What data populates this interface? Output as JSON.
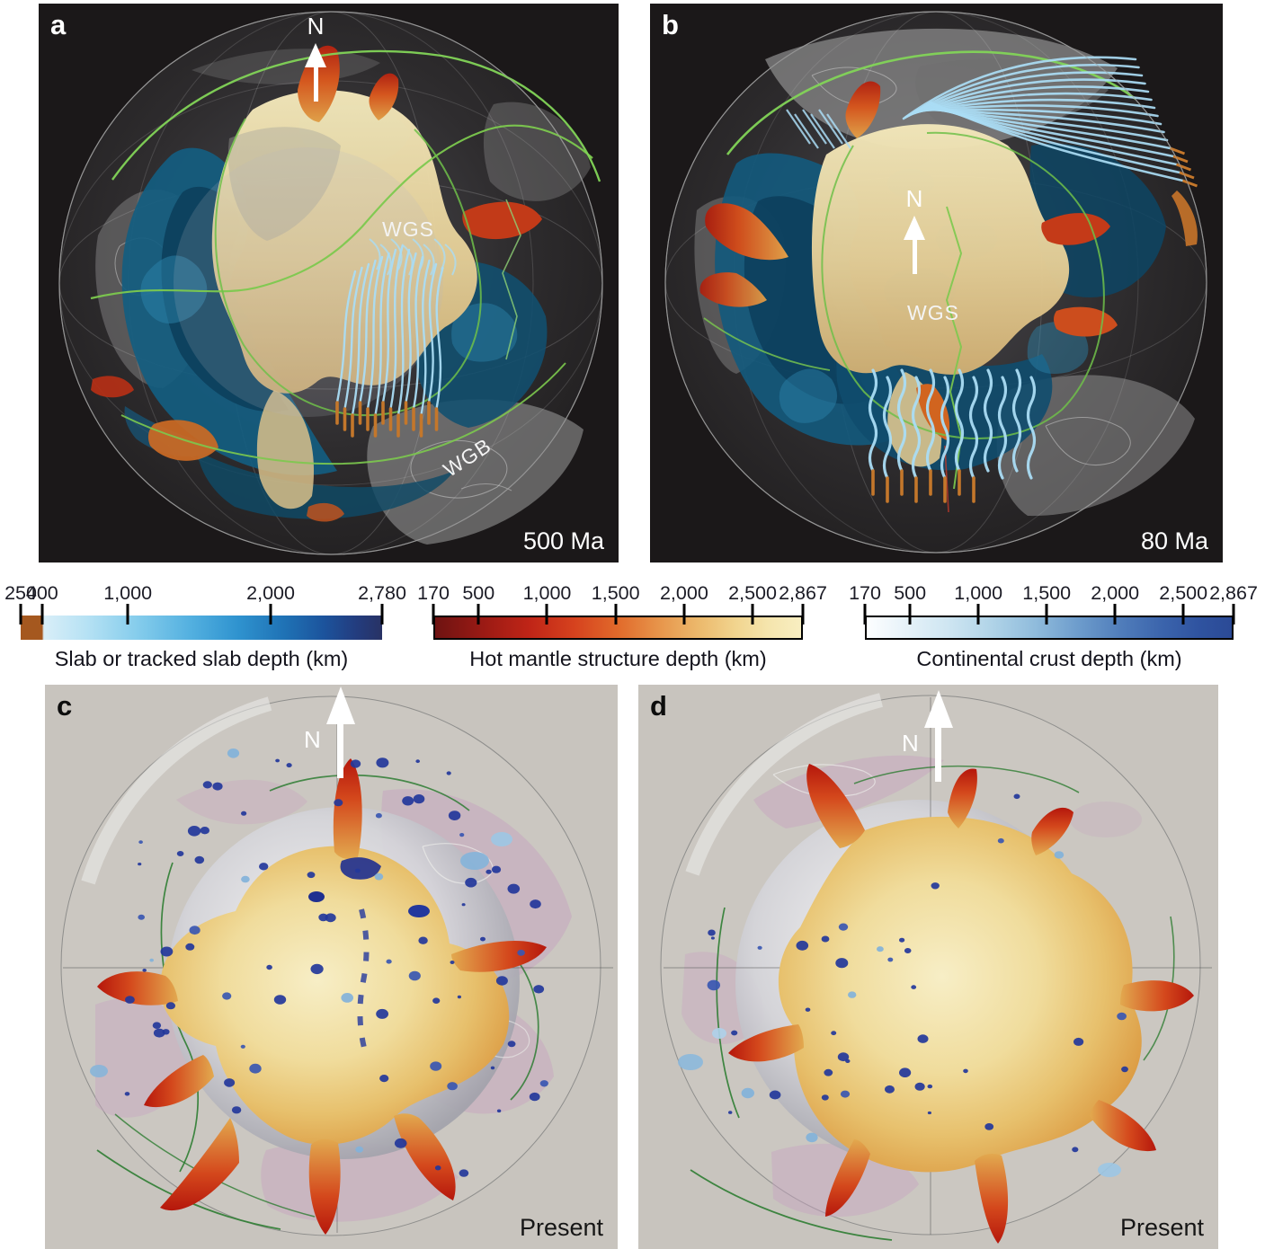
{
  "figure": {
    "type": "four-panel mantle convection globe figure",
    "panels": {
      "a": {
        "label": "a",
        "era": "500 Ma",
        "north": "N",
        "annotations": {
          "wgs": "WGS",
          "wgb": "WGB"
        }
      },
      "b": {
        "label": "b",
        "era": "80 Ma",
        "north": "N",
        "annotations": {
          "wgs": "WGS"
        }
      },
      "c": {
        "label": "c",
        "era": "Present",
        "north": "N"
      },
      "d": {
        "label": "d",
        "era": "Present",
        "north": "N"
      }
    },
    "colorbars": [
      {
        "id": "slab-depth",
        "caption": "Slab or tracked slab depth (km)",
        "min": 250,
        "max": 2780,
        "ticks": [
          {
            "value": 250,
            "label": "250"
          },
          {
            "value": 400,
            "label": "400"
          },
          {
            "value": 1000,
            "label": "1,000"
          },
          {
            "value": 2000,
            "label": "2,000"
          },
          {
            "value": 2780,
            "label": "2,780"
          }
        ],
        "border": false,
        "gradient_css": "linear-gradient(90deg,#a5581f 0%,#a5581f 5.9%,#d9eef8 6.4%,#b7e2f4 18%,#86cdec 32%,#53b0e0 47%,#2f93cf 60%,#1f72b5 73%,#1c539c 84%,#233c7e 93%,#283264 100%)"
      },
      {
        "id": "hot-mantle-depth",
        "caption": "Hot mantle structure depth (km)",
        "min": 170,
        "max": 2867,
        "ticks": [
          {
            "value": 170,
            "label": "170"
          },
          {
            "value": 500,
            "label": "500"
          },
          {
            "value": 1000,
            "label": "1,000"
          },
          {
            "value": 1500,
            "label": "1,500"
          },
          {
            "value": 2000,
            "label": "2,000"
          },
          {
            "value": 2500,
            "label": "2,500"
          },
          {
            "value": 2867,
            "label": "2,867"
          }
        ],
        "border": true,
        "gradient_css": "linear-gradient(90deg,#6e1312 0%,#9a1a14 13%,#c02517 26%,#d6421e 38%,#e16a2b 50%,#e7944a 61%,#ecb96c 72%,#f1d48e 82%,#f5e5ad 91%,#f8eec1 100%)"
      },
      {
        "id": "continental-crust-depth",
        "caption": "Continental crust depth (km)",
        "min": 170,
        "max": 2867,
        "ticks": [
          {
            "value": 170,
            "label": "170"
          },
          {
            "value": 500,
            "label": "500"
          },
          {
            "value": 1000,
            "label": "1,000"
          },
          {
            "value": 1500,
            "label": "1,500"
          },
          {
            "value": 2000,
            "label": "2,000"
          },
          {
            "value": 2500,
            "label": "2,500"
          },
          {
            "value": 2867,
            "label": "2,867"
          }
        ],
        "border": true,
        "gradient_css": "linear-gradient(90deg,#fdfeff 0%,#e8f3f9 10%,#cfe6f2 22%,#b1d4e8 34%,#90bcdc 46%,#6d9ccc 58%,#4f7cba 70%,#3b64ac 81%,#2f53a0 91%,#2b4a96 100%)"
      }
    ],
    "colors": {
      "panel_dark_bg": "#1b1819",
      "panel_light_bg": "#c8c4be",
      "streamline_blue": "#aadcf4",
      "streamline_tip_orange": "#c4772b",
      "deep_slab_navy": "#23379b",
      "deep_slab_blue": "#3a57b2",
      "shallow_slab_lightblue": "#82b2da",
      "plate_boundary_green": "#7cc94e",
      "plate_boundary_green_dark": "#2e7d32",
      "hot_mantle_cream": "#ead9a6",
      "hot_mantle_red": "#c22f15",
      "slab_blue_mass": "#15567a",
      "continent_mauve": "#c7a6c0"
    }
  },
  "chart_data": [
    {
      "type": "colorbar",
      "title": "Slab or tracked slab depth (km)",
      "range": [
        250,
        2780
      ],
      "tick_values": [
        250,
        400,
        1000,
        2000,
        2780
      ],
      "colors": [
        "#a5581f",
        "#d9eef8",
        "#53b0e0",
        "#1c539c",
        "#283264"
      ]
    },
    {
      "type": "colorbar",
      "title": "Hot mantle structure depth (km)",
      "range": [
        170,
        2867
      ],
      "tick_values": [
        170,
        500,
        1000,
        1500,
        2000,
        2500,
        2867
      ],
      "colors": [
        "#6e1312",
        "#c02517",
        "#e16a2b",
        "#ecb96c",
        "#f8eec1"
      ]
    },
    {
      "type": "colorbar",
      "title": "Continental crust depth (km)",
      "range": [
        170,
        2867
      ],
      "tick_values": [
        170,
        500,
        1000,
        1500,
        2000,
        2500,
        2867
      ],
      "colors": [
        "#fdfeff",
        "#cfe6f2",
        "#90bcdc",
        "#4f7cba",
        "#2b4a96"
      ]
    }
  ]
}
